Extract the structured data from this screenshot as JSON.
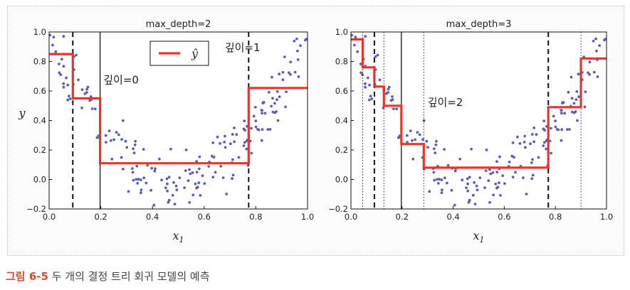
{
  "chart_data": [
    {
      "type": "scatter",
      "title": "max_depth=2",
      "xlabel": "x",
      "xlabel_sub": "1",
      "ylabel": "y",
      "xlim": [
        0.0,
        1.0
      ],
      "ylim": [
        -0.2,
        1.0
      ],
      "xticks": [
        "0.0",
        "0.2",
        "0.4",
        "0.6",
        "0.8",
        "1.0"
      ],
      "yticks": [
        "−0.2",
        "0.0",
        "0.2",
        "0.4",
        "0.6",
        "0.8",
        "1.0"
      ],
      "legend": {
        "label": "ŷ",
        "placement": "top-center"
      },
      "prediction": [
        {
          "x0": 0.0,
          "x1": 0.0917,
          "y": 0.85
        },
        {
          "x0": 0.0917,
          "x1": 0.1972,
          "y": 0.55
        },
        {
          "x0": 0.1972,
          "x1": 0.7722,
          "y": 0.11
        },
        {
          "x0": 0.7722,
          "x1": 1.0,
          "y": 0.62
        }
      ],
      "splits": [
        {
          "x": 0.1972,
          "style": "solid"
        },
        {
          "x": 0.0917,
          "style": "dashed"
        },
        {
          "x": 0.7722,
          "style": "dashed"
        }
      ],
      "annotations": [
        {
          "text": "깊이=0",
          "x": 0.21,
          "y": 0.65
        },
        {
          "text": "깊이=1",
          "x": 0.68,
          "y": 0.87
        }
      ]
    },
    {
      "type": "scatter",
      "title": "max_depth=3",
      "xlabel": "x",
      "xlabel_sub": "1",
      "ylabel": "",
      "xlim": [
        0.0,
        1.0
      ],
      "ylim": [
        -0.2,
        1.0
      ],
      "xticks": [
        "0.0",
        "0.2",
        "0.4",
        "0.6",
        "0.8",
        "1.0"
      ],
      "yticks": [
        "−0.2",
        "0.0",
        "0.2",
        "0.4",
        "0.6",
        "0.8",
        "1.0"
      ],
      "prediction": [
        {
          "x0": 0.0,
          "x1": 0.046,
          "y": 0.95
        },
        {
          "x0": 0.046,
          "x1": 0.0917,
          "y": 0.76
        },
        {
          "x0": 0.0917,
          "x1": 0.129,
          "y": 0.63
        },
        {
          "x0": 0.129,
          "x1": 0.1972,
          "y": 0.5
        },
        {
          "x0": 0.1972,
          "x1": 0.285,
          "y": 0.24
        },
        {
          "x0": 0.285,
          "x1": 0.7722,
          "y": 0.08
        },
        {
          "x0": 0.7722,
          "x1": 0.9,
          "y": 0.49
        },
        {
          "x0": 0.9,
          "x1": 1.0,
          "y": 0.82
        }
      ],
      "splits": [
        {
          "x": 0.1972,
          "style": "solid"
        },
        {
          "x": 0.0917,
          "style": "dashed"
        },
        {
          "x": 0.7722,
          "style": "dashed"
        },
        {
          "x": 0.046,
          "style": "dotted"
        },
        {
          "x": 0.129,
          "style": "dotted"
        },
        {
          "x": 0.285,
          "style": "dotted"
        },
        {
          "x": 0.9,
          "style": "dotted"
        }
      ],
      "annotations": [
        {
          "text": "깊이=2",
          "x": 0.3,
          "y": 0.5
        }
      ]
    }
  ],
  "caption": {
    "number": "그림 6-5",
    "text": " 두 개의 결정 트리 회귀 모델의 예측"
  },
  "colors": {
    "prediction_line": "#e8352a",
    "points": "#5b5fb0",
    "axis": "#222222",
    "caption_number": "#d84a2f"
  }
}
